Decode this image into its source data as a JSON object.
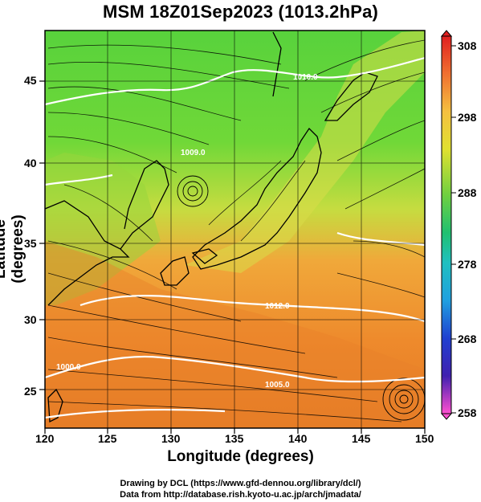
{
  "title": "MSM 18Z01Sep2023 (1013.2hPa)",
  "xlabel": "Longitude (degrees)",
  "ylabel": "Latitude  (degrees)",
  "credit_line1": "Drawing by DCL (https://www.gfd-dennou.org/library/dcl/)",
  "credit_line2": "Data from http://database.rish.kyoto-u.ac.jp/arch/jmadata/",
  "map": {
    "lon_range": [
      120,
      150
    ],
    "lat_range": [
      22.5,
      47.5
    ],
    "lon_ticks": [
      "120",
      "125",
      "130",
      "135",
      "140",
      "145",
      "150"
    ],
    "lat_ticks": [
      "25",
      "30",
      "35",
      "40",
      "45"
    ],
    "field": "surface temperature with streamlines and pressure contours",
    "colorbar": {
      "min": 258,
      "max": 308,
      "labels": [
        "308",
        "298",
        "288",
        "278",
        "268",
        "258"
      ],
      "colors": [
        "#e02020",
        "#f07030",
        "#f5a040",
        "#f0d040",
        "#c8e030",
        "#60d040",
        "#20c080",
        "#20b0d0",
        "#2060e0",
        "#3020b0",
        "#c020c0",
        "#ff40c0"
      ]
    },
    "contour_labels": [
      "1010.0",
      "1012.0",
      "1009.0",
      "1005.0",
      "1000.0"
    ]
  }
}
